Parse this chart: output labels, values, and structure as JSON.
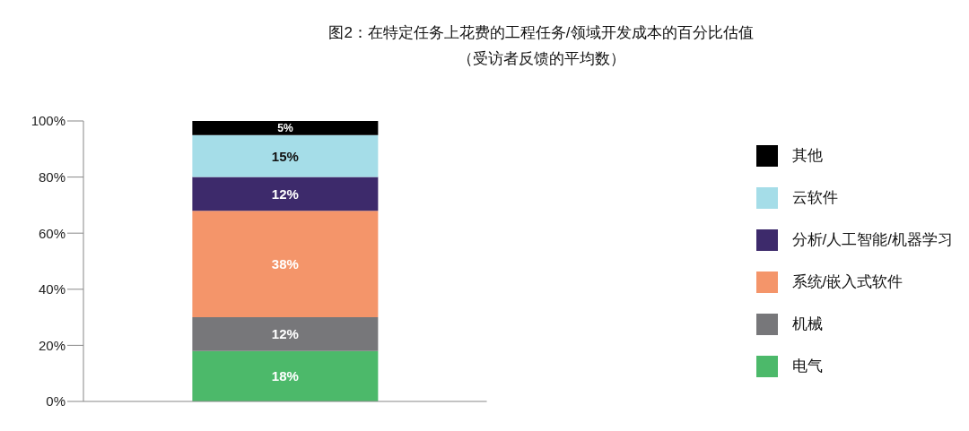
{
  "chart_data": {
    "type": "bar",
    "title": "图2：在特定任务上花费的工程任务/领域开发成本的百分比估值",
    "subtitle": "（受访者反馈的平均数）",
    "categories": [
      null
    ],
    "stacked": true,
    "ylim": [
      0,
      100
    ],
    "yticks": [
      {
        "value": 0,
        "label": "0%"
      },
      {
        "value": 20,
        "label": "20%"
      },
      {
        "value": 40,
        "label": "40%"
      },
      {
        "value": 60,
        "label": "60%"
      },
      {
        "value": 80,
        "label": "80%"
      },
      {
        "value": 100,
        "label": "100%"
      }
    ],
    "grid": false,
    "legend": "right",
    "series": [
      {
        "name": "电气",
        "color": "#4cb96a",
        "values": [
          18
        ],
        "value_labels": [
          "18%"
        ]
      },
      {
        "name": "机械",
        "color": "#77777a",
        "values": [
          12
        ],
        "value_labels": [
          "12%"
        ]
      },
      {
        "name": "系统/嵌入式软件",
        "color": "#f4956a",
        "values": [
          38
        ],
        "value_labels": [
          "38%"
        ]
      },
      {
        "name": "分析/人工智能/机器学习",
        "color": "#3d2a6b",
        "values": [
          12
        ],
        "value_labels": [
          "12%"
        ]
      },
      {
        "name": "云软件",
        "color": "#a5dde8",
        "values": [
          15
        ],
        "value_labels": [
          "15%"
        ]
      },
      {
        "name": "其他",
        "color": "#000000",
        "values": [
          5
        ],
        "value_labels": [
          "5%"
        ]
      }
    ]
  }
}
